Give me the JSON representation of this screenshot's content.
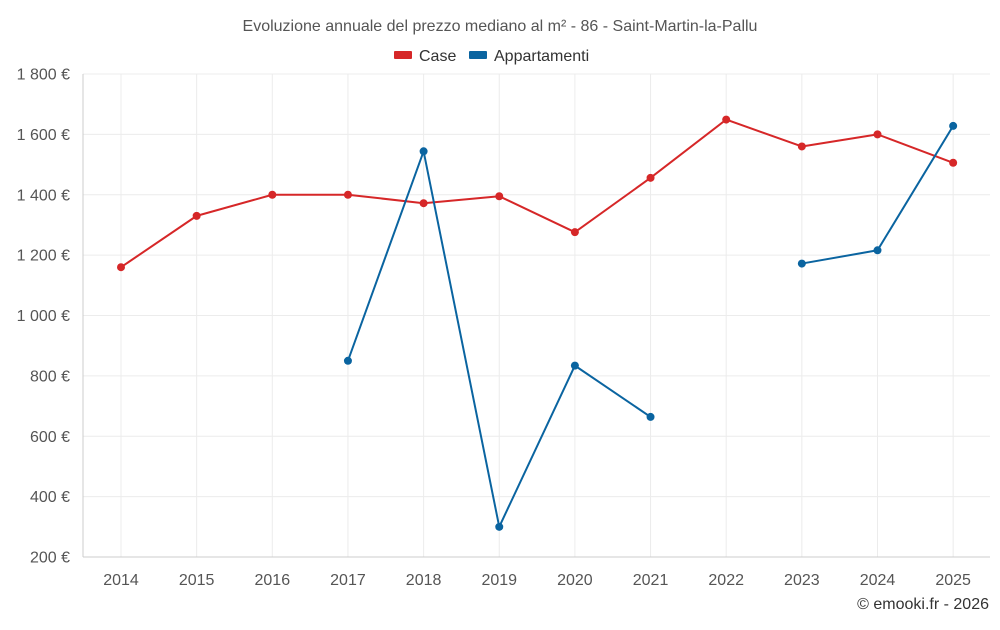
{
  "chart_data": {
    "type": "line",
    "title": "Evoluzione annuale del prezzo mediano al m² - 86 - Saint-Martin-la-Pallu",
    "categories": [
      "2014",
      "2015",
      "2016",
      "2017",
      "2018",
      "2019",
      "2020",
      "2021",
      "2022",
      "2023",
      "2024",
      "2025"
    ],
    "series": [
      {
        "name": "Case",
        "color": "#d62728",
        "values": [
          1160,
          1330,
          1400,
          1400,
          1372,
          1395,
          1276,
          1456,
          1649,
          1560,
          1600,
          1506
        ]
      },
      {
        "name": "Appartamenti",
        "color": "#0a64a0",
        "values": [
          null,
          null,
          null,
          850,
          1544,
          300,
          834,
          664,
          null,
          1172,
          1216,
          1628
        ]
      }
    ],
    "ylim": [
      200,
      1800
    ],
    "yticks": [
      200,
      400,
      600,
      800,
      1000,
      1200,
      1400,
      1600,
      1800
    ],
    "ytick_labels": [
      "200 €",
      "400 €",
      "600 €",
      "800 €",
      "1 000 €",
      "1 200 €",
      "1 400 €",
      "1 600 €",
      "1 800 €"
    ],
    "xlabel": "",
    "ylabel": "",
    "legend_position": "top-center",
    "grid": true
  },
  "credit": "© emooki.fr - 2026"
}
